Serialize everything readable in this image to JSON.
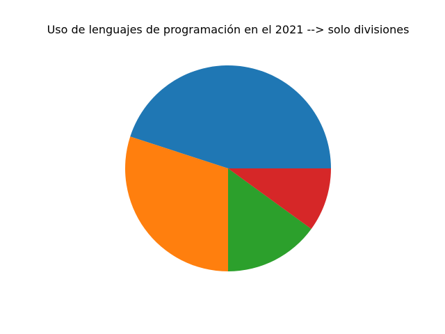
{
  "chart_data": {
    "type": "pie",
    "title": "Uso de lenguajes de programación en el 2021 --> solo divisiones",
    "values": [
      45,
      30,
      15,
      10
    ],
    "colors": [
      "#1f77b4",
      "#ff7f0e",
      "#2ca02c",
      "#d62728"
    ],
    "start_angle_deg": 0,
    "direction": "counterclockwise",
    "legend": "none",
    "labels_shown": false
  }
}
